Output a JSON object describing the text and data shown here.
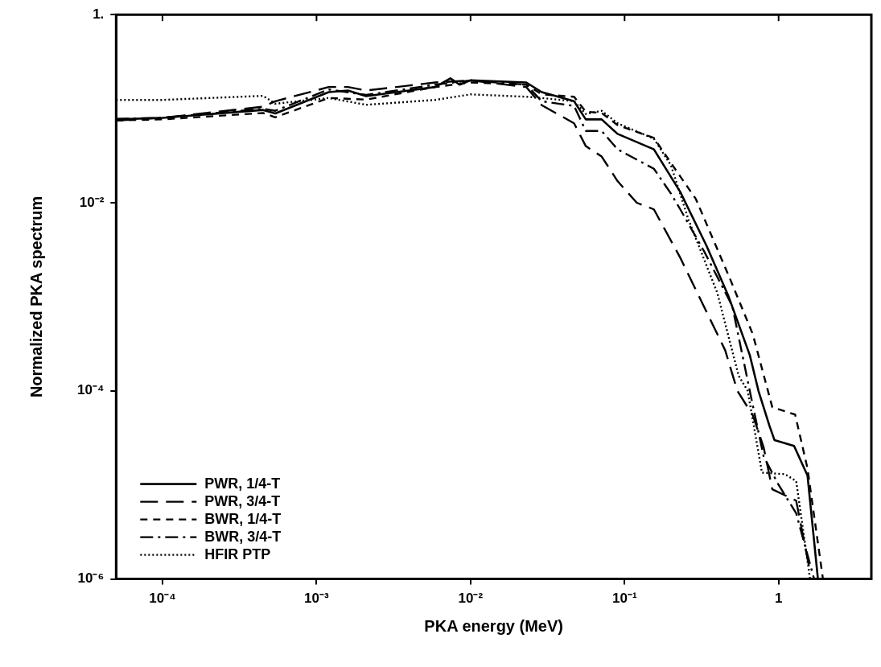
{
  "chart_data": {
    "type": "line",
    "xlabel": "PKA energy (MeV)",
    "ylabel": "Normalized PKA spectrum",
    "log": "xy",
    "grid": false,
    "legend": "bottom left",
    "marker": "none",
    "xlim": [
      5e-05,
      4
    ],
    "xticks": [
      {
        "value": 0.0001,
        "label": "10⁻⁴"
      },
      {
        "value": 0.001,
        "label": "10⁻³"
      },
      {
        "value": 0.01,
        "label": "10⁻²"
      },
      {
        "value": 0.1,
        "label": "10⁻¹"
      },
      1
    ],
    "ylim": [
      1e-06,
      1
    ],
    "yticks": [
      {
        "value": 1e-06,
        "label": "10⁻⁶"
      },
      {
        "value": 0.0001,
        "label": "10⁻⁴"
      },
      {
        "value": 0.01,
        "label": "10⁻²"
      },
      {
        "value": 1,
        "label": "1."
      }
    ],
    "series": [
      {
        "name": "PWR, 1/4-T",
        "color": "#000000",
        "line_style": "solid",
        "x": [
          5e-05,
          0.0001,
          0.00045,
          0.00054,
          0.0012,
          0.0016,
          0.0021,
          0.0059,
          0.0074,
          0.0085,
          0.01,
          0.023,
          0.029,
          0.047,
          0.056,
          0.071,
          0.09,
          0.155,
          0.23,
          0.34,
          0.47,
          0.65,
          0.74,
          0.87,
          0.94,
          1.26,
          1.54,
          1.8
        ],
        "values": [
          0.077,
          0.08,
          0.097,
          0.089,
          0.15,
          0.156,
          0.136,
          0.17,
          0.21,
          0.18,
          0.2,
          0.19,
          0.15,
          0.12,
          0.077,
          0.077,
          0.054,
          0.037,
          0.013,
          0.0035,
          0.00104,
          0.00024,
          0.0001,
          4.3e-05,
          3e-05,
          2.6e-05,
          1.26e-05,
          1e-06
        ]
      },
      {
        "name": "PWR, 3/4-T",
        "color": "#000000",
        "line_style": "dashed",
        "x": [
          5e-05,
          0.0001,
          0.00045,
          0.00054,
          0.0012,
          0.0016,
          0.0021,
          0.0059,
          0.01,
          0.023,
          0.029,
          0.047,
          0.056,
          0.071,
          0.09,
          0.12,
          0.155,
          0.23,
          0.45,
          0.54,
          0.68,
          0.8,
          0.91,
          1.3,
          1.6
        ],
        "values": [
          0.075,
          0.08,
          0.105,
          0.12,
          0.17,
          0.17,
          0.156,
          0.19,
          0.2,
          0.17,
          0.109,
          0.07,
          0.04,
          0.031,
          0.017,
          0.01,
          0.0085,
          0.0026,
          0.00027,
          0.0001,
          5.5e-05,
          2.5e-05,
          9e-06,
          6.8e-06,
          1.2e-06
        ]
      },
      {
        "name": "BWR, 1/4-T",
        "color": "#000000",
        "line_style": "short_dashed",
        "x": [
          5e-05,
          0.0001,
          0.00045,
          0.00054,
          0.0012,
          0.0021,
          0.0059,
          0.01,
          0.023,
          0.029,
          0.047,
          0.056,
          0.071,
          0.09,
          0.155,
          0.23,
          0.29,
          0.48,
          0.68,
          0.91,
          1.28,
          1.54,
          1.94
        ],
        "values": [
          0.075,
          0.077,
          0.09,
          0.081,
          0.13,
          0.125,
          0.17,
          0.19,
          0.18,
          0.142,
          0.134,
          0.093,
          0.09,
          0.067,
          0.049,
          0.019,
          0.011,
          0.0016,
          0.0004,
          6.7e-05,
          5.6e-05,
          1.5e-05,
          1e-06
        ]
      },
      {
        "name": "BWR, 3/4-T",
        "color": "#000000",
        "line_style": "dashdot",
        "x": [
          5e-05,
          0.0001,
          0.00045,
          0.00054,
          0.0012,
          0.0021,
          0.0059,
          0.01,
          0.023,
          0.029,
          0.047,
          0.056,
          0.071,
          0.09,
          0.155,
          0.2,
          0.23,
          0.33,
          0.5,
          0.68,
          0.8,
          1.0,
          1.3,
          1.7
        ],
        "values": [
          0.078,
          0.08,
          0.1,
          0.095,
          0.16,
          0.14,
          0.18,
          0.2,
          0.18,
          0.12,
          0.107,
          0.058,
          0.058,
          0.037,
          0.023,
          0.0125,
          0.0085,
          0.003,
          0.0008,
          7e-05,
          2e-05,
          1e-05,
          5e-06,
          1e-06
        ]
      },
      {
        "name": "HFIR PTP",
        "color": "#000000",
        "line_style": "dotted",
        "x": [
          5e-05,
          0.0001,
          0.00045,
          0.00054,
          0.0012,
          0.0021,
          0.0059,
          0.01,
          0.023,
          0.029,
          0.047,
          0.056,
          0.071,
          0.09,
          0.155,
          0.2,
          0.26,
          0.4,
          0.55,
          0.63,
          0.78,
          1.1,
          1.3,
          1.6
        ],
        "values": [
          0.124,
          0.124,
          0.137,
          0.113,
          0.13,
          0.11,
          0.124,
          0.142,
          0.134,
          0.13,
          0.12,
          0.088,
          0.095,
          0.07,
          0.048,
          0.025,
          0.0066,
          0.0011,
          0.000145,
          0.0001,
          1.35e-05,
          1.3e-05,
          1.1e-05,
          1e-06
        ]
      }
    ]
  }
}
